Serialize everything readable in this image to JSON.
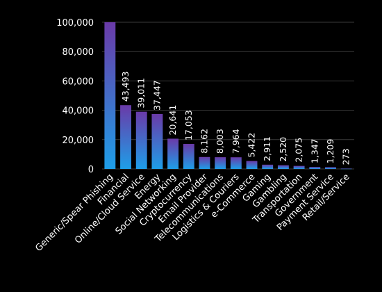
{
  "colors": {
    "background": "#000000",
    "bar_top": "#6a3aa8",
    "bar_bottom": "#1e9ee8",
    "grid": "#3a3a3a",
    "text": "#ffffff"
  },
  "chart_data": {
    "type": "bar",
    "categories": [
      "Generic/Spear Phishing",
      "Financial",
      "Online/Cloud Service",
      "Energy",
      "Social Networking",
      "Cryptocurrency",
      "Email Provider",
      "Telecommunications",
      "Logistics & Couriers",
      "e-Commerce",
      "Gaming",
      "Gambling",
      "Transportation",
      "Government",
      "Payment Service",
      "Retail/Service"
    ],
    "values": [
      101000,
      43493,
      39011,
      37447,
      20641,
      17053,
      8162,
      8003,
      7964,
      5422,
      2911,
      2520,
      2075,
      1347,
      1209,
      273
    ],
    "data_labels": [
      "",
      "43,493",
      "39,011",
      "37,447",
      "20,641",
      "17,053",
      "8,162",
      "8,003",
      "7,964",
      "5,422",
      "2,911",
      "2,520",
      "2,075",
      "1,347",
      "1,209",
      "273"
    ],
    "yticks": [
      "0",
      "20,000",
      "40,000",
      "60,000",
      "80,000",
      "100,000"
    ],
    "ylim": [
      0,
      100000
    ],
    "grid": true,
    "legend": "none"
  }
}
